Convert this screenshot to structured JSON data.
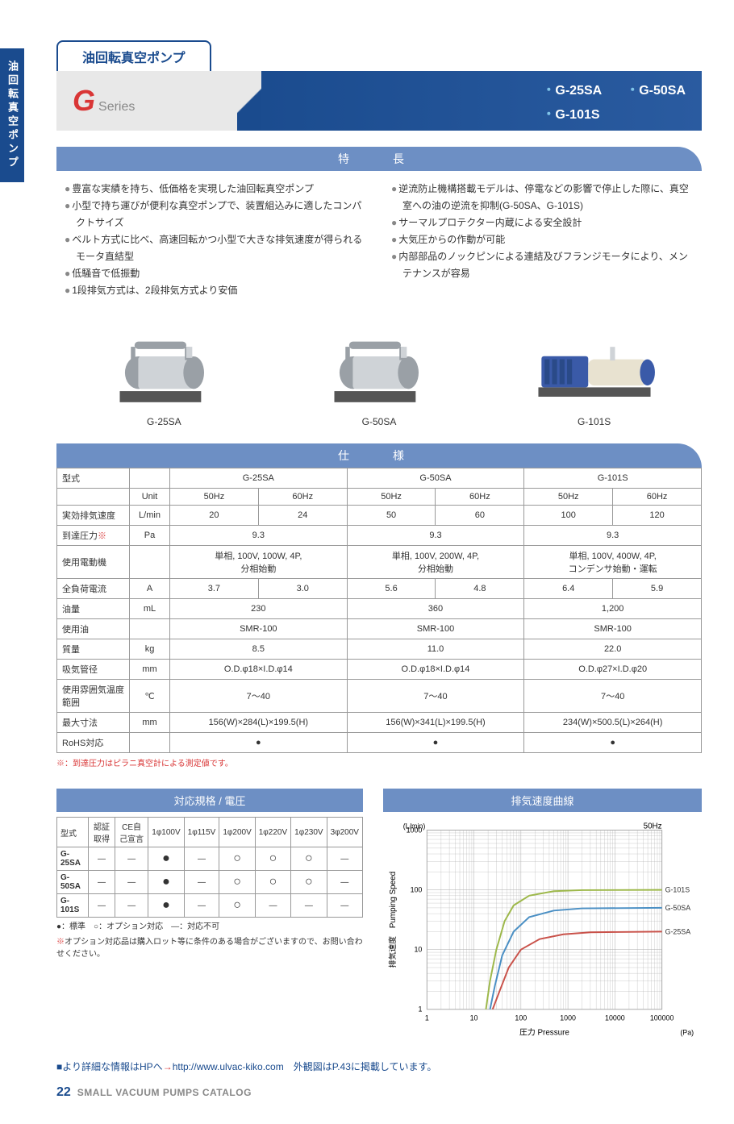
{
  "sideTab": "油回転真空ポンプ",
  "titleTab": "油回転真空ポンプ",
  "seriesG": "G",
  "seriesLabel": "Series",
  "models": [
    "G-25SA",
    "G-50SA",
    "G-101S"
  ],
  "sections": {
    "features": "特　長",
    "spec": "仕　様",
    "standards": "対応規格 / 電圧",
    "curve": "排気速度曲線"
  },
  "featuresL": [
    "豊富な実績を持ち、低価格を実現した油回転真空ポンプ",
    "小型で持ち運びが便利な真空ポンプで、装置組込みに適したコンパクトサイズ",
    "ベルト方式に比べ、高速回転かつ小型で大きな排気速度が得られるモータ直結型",
    "低騒音で低振動",
    "1段排気方式は、2段排気方式より安価"
  ],
  "featuresR": [
    "逆流防止機構搭載モデルは、停電などの影響で停止した際に、真空室への油の逆流を抑制(G-50SA、G-101S)",
    "サーマルプロテクター内蔵による安全設計",
    "大気圧からの作動が可能",
    "内部部品のノックピンによる連結及びフランジモータにより、メンテナンスが容易"
  ],
  "productLabels": [
    "G-25SA",
    "G-50SA",
    "G-101S"
  ],
  "productColors": {
    "greyDark": "#9aa0a6",
    "greyLight": "#cfd3d7",
    "blue": "#3a5aa8",
    "cream": "#e8e2d0",
    "base": "#555"
  },
  "spec": {
    "headers": {
      "model": "型式",
      "unit": "Unit",
      "c1": "G-25SA",
      "c2": "G-50SA",
      "c3": "G-101S",
      "hz50": "50Hz",
      "hz60": "60Hz"
    },
    "rows": [
      {
        "label": "実効排気速度",
        "unit": "L/min",
        "v": [
          "20",
          "24",
          "50",
          "60",
          "100",
          "120"
        ]
      },
      {
        "label": "到達圧力",
        "labelSup": "※",
        "unit": "Pa",
        "span3": [
          "9.3",
          "9.3",
          "9.3"
        ]
      },
      {
        "label": "使用電動機",
        "unit": "",
        "span3": [
          "単相, 100V, 100W, 4P,\n分相始動",
          "単相, 100V, 200W, 4P,\n分相始動",
          "単相, 100V, 400W, 4P,\nコンデンサ始動・運転"
        ]
      },
      {
        "label": "全負荷電流",
        "unit": "A",
        "v": [
          "3.7",
          "3.0",
          "5.6",
          "4.8",
          "6.4",
          "5.9"
        ]
      },
      {
        "label": "油量",
        "unit": "mL",
        "span3": [
          "230",
          "360",
          "1,200"
        ]
      },
      {
        "label": "使用油",
        "unit": "",
        "span3": [
          "SMR-100",
          "SMR-100",
          "SMR-100"
        ]
      },
      {
        "label": "質量",
        "unit": "kg",
        "span3": [
          "8.5",
          "11.0",
          "22.0"
        ]
      },
      {
        "label": "吸気管径",
        "unit": "mm",
        "span3": [
          "O.D.φ18×I.D.φ14",
          "O.D.φ18×I.D.φ14",
          "O.D.φ27×I.D.φ20"
        ]
      },
      {
        "label": "使用雰囲気温度範囲",
        "unit": "℃",
        "span3": [
          "7～40",
          "7～40",
          "7～40"
        ]
      },
      {
        "label": "最大寸法",
        "unit": "mm",
        "span3": [
          "156(W)×284(L)×199.5(H)",
          "156(W)×341(L)×199.5(H)",
          "234(W)×500.5(L)×264(H)"
        ]
      },
      {
        "label": "RoHS対応",
        "unit": "",
        "span3": [
          "●",
          "●",
          "●"
        ]
      }
    ]
  },
  "specNote": "※：到達圧力はピラニ真空計による測定値です。",
  "standards": {
    "headers": [
      "型式",
      "認証取得",
      "CE自己宣言",
      "1φ100V",
      "1φ115V",
      "1φ200V",
      "1φ220V",
      "1φ230V",
      "3φ200V"
    ],
    "rows": [
      [
        "G-25SA",
        "—",
        "—",
        "●",
        "—",
        "○",
        "○",
        "○",
        "—"
      ],
      [
        "G-50SA",
        "—",
        "—",
        "●",
        "—",
        "○",
        "○",
        "○",
        "—"
      ],
      [
        "G-101S",
        "—",
        "—",
        "●",
        "—",
        "○",
        "—",
        "—",
        "—"
      ]
    ],
    "legend": "●：標準　○：オプション対応　—：対応不可",
    "note": "※オプション対応品は購入ロット等に条件のある場合がございますので、お問い合わせください。"
  },
  "chart": {
    "xlabel": "圧力 Pressure",
    "xunit": "(Pa)",
    "ylabel": "排気速度　Pumping Speed",
    "yunit": "(L/min)",
    "freq": "50Hz",
    "xlim": [
      1,
      100000
    ],
    "ylim": [
      1,
      1000
    ],
    "xticks": [
      1,
      10,
      100,
      1000,
      10000,
      100000
    ],
    "yticks": [
      1,
      10,
      100,
      1000
    ],
    "grid_color": "#aaa",
    "bg_color": "#ffffff",
    "series": [
      {
        "name": "G-101S",
        "color": "#9db84a",
        "width": 2,
        "pts": [
          [
            18,
            1
          ],
          [
            22,
            3
          ],
          [
            30,
            10
          ],
          [
            45,
            30
          ],
          [
            70,
            55
          ],
          [
            150,
            80
          ],
          [
            500,
            95
          ],
          [
            2000,
            99
          ],
          [
            100000,
            100
          ]
        ]
      },
      {
        "name": "G-50SA",
        "color": "#4a8fc4",
        "width": 2,
        "pts": [
          [
            22,
            1
          ],
          [
            28,
            2.5
          ],
          [
            40,
            8
          ],
          [
            70,
            20
          ],
          [
            150,
            35
          ],
          [
            500,
            45
          ],
          [
            2000,
            49
          ],
          [
            100000,
            50
          ]
        ]
      },
      {
        "name": "G-25SA",
        "color": "#c9524a",
        "width": 2,
        "pts": [
          [
            25,
            1
          ],
          [
            35,
            2
          ],
          [
            55,
            5
          ],
          [
            100,
            10
          ],
          [
            250,
            15
          ],
          [
            800,
            18
          ],
          [
            3000,
            19.5
          ],
          [
            100000,
            20
          ]
        ]
      }
    ]
  },
  "link": {
    "pre": "■より詳細な情報はHPへ",
    "arrow": "→",
    "url": "http://www.ulvac-kiko.com",
    "suffix": "　外観図はP.43に掲載しています。"
  },
  "footer": {
    "page": "22",
    "title": "SMALL VACUUM PUMPS CATALOG"
  }
}
